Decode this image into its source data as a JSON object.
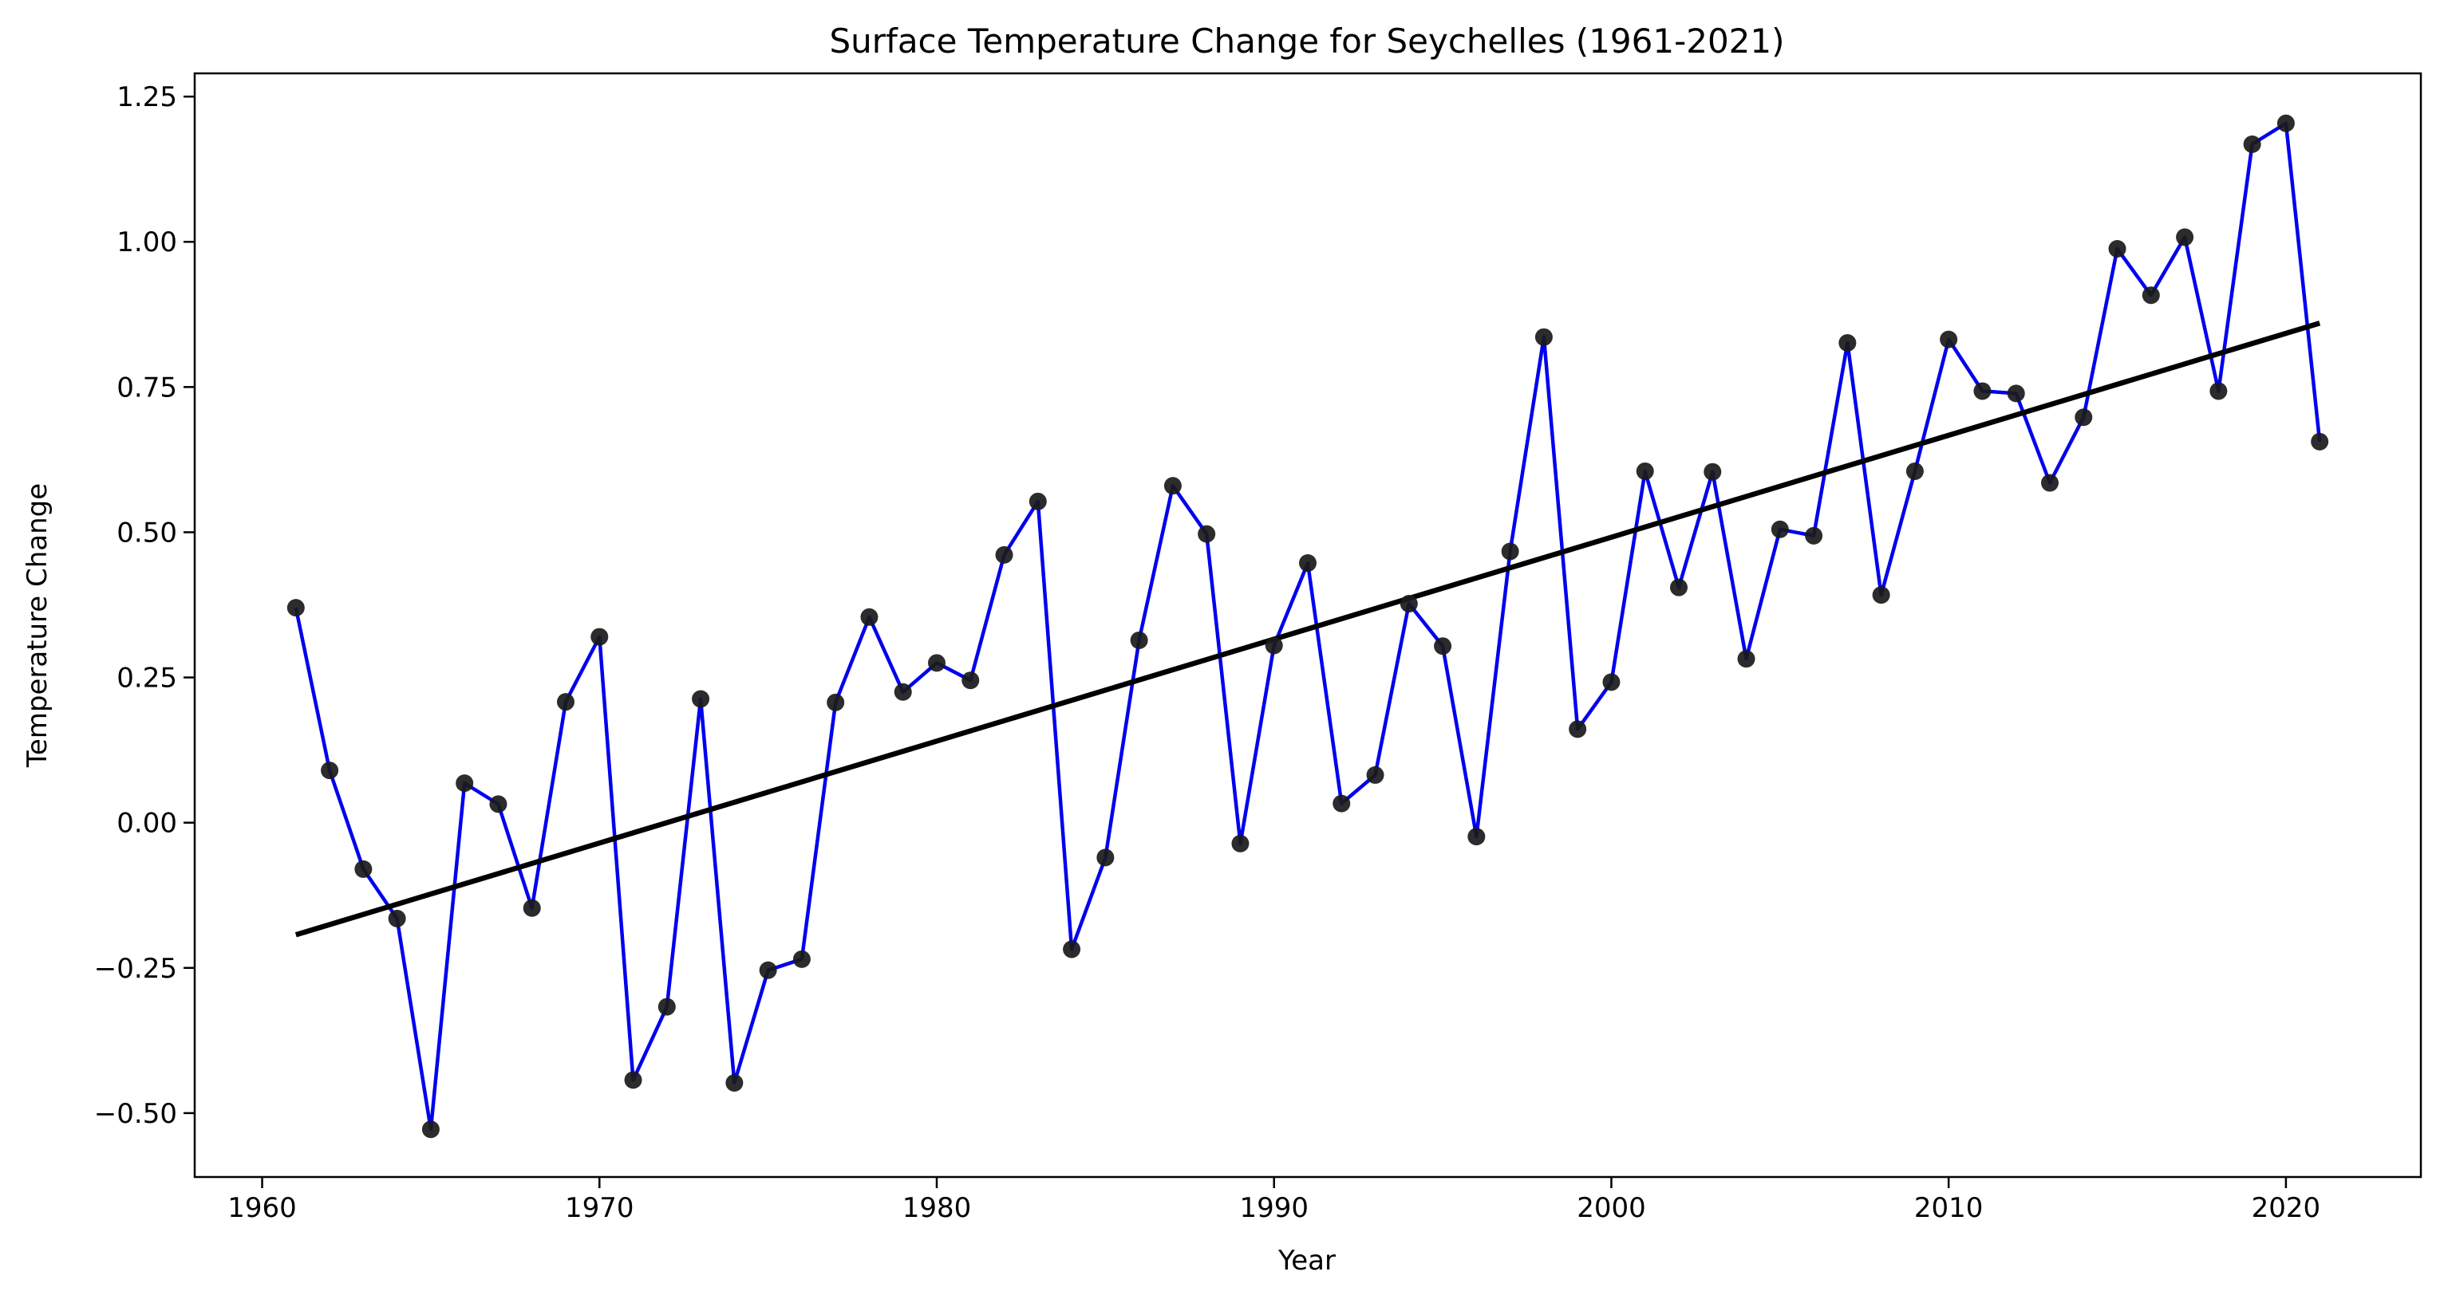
{
  "chart_data": {
    "type": "line",
    "title": "Surface Temperature Change for Seychelles (1961-2021)",
    "xlabel": "Year",
    "ylabel": "Temperature Change",
    "xlim": [
      1958.0,
      2024.0
    ],
    "ylim": [
      -0.61,
      1.29
    ],
    "xticks": [
      1960,
      1970,
      1980,
      1990,
      2000,
      2010,
      2020
    ],
    "xtick_labels": [
      "1960",
      "1970",
      "1980",
      "1990",
      "2000",
      "2010",
      "2020"
    ],
    "yticks": [
      -0.5,
      -0.25,
      0.0,
      0.25,
      0.5,
      0.75,
      1.0,
      1.25
    ],
    "ytick_labels": [
      "−0.50",
      "−0.25",
      "0.00",
      "0.25",
      "0.50",
      "0.75",
      "1.00",
      "1.25"
    ],
    "grid": false,
    "legend": "none",
    "series": [
      {
        "x": [
          1961,
          1962,
          1963,
          1964,
          1965,
          1966,
          1967,
          1968,
          1969,
          1970,
          1971,
          1972,
          1973,
          1974,
          1975,
          1976,
          1977,
          1978,
          1979,
          1980,
          1981,
          1982,
          1983,
          1984,
          1985,
          1986,
          1987,
          1988,
          1989,
          1990,
          1991,
          1992,
          1993,
          1994,
          1995,
          1996,
          1997,
          1998,
          1999,
          2000,
          2001,
          2002,
          2003,
          2004,
          2005,
          2006,
          2007,
          2008,
          2009,
          2010,
          2011,
          2012,
          2013,
          2014,
          2015,
          2016,
          2017,
          2018,
          2019,
          2020,
          2021
        ],
        "values": [
          0.37,
          0.09,
          -0.08,
          -0.165,
          -0.528,
          0.068,
          0.032,
          -0.147,
          0.208,
          0.32,
          -0.443,
          -0.317,
          0.213,
          -0.448,
          -0.254,
          -0.235,
          0.207,
          0.354,
          0.225,
          0.275,
          0.245,
          0.461,
          0.553,
          -0.218,
          -0.06,
          0.314,
          0.58,
          0.497,
          -0.036,
          0.305,
          0.447,
          0.033,
          0.082,
          0.377,
          0.304,
          -0.024,
          0.467,
          0.836,
          0.161,
          0.242,
          0.605,
          0.405,
          0.604,
          0.282,
          0.505,
          0.494,
          0.826,
          0.392,
          0.605,
          0.832,
          0.743,
          0.739,
          0.585,
          0.698,
          0.988,
          0.908,
          1.008,
          0.743,
          1.168,
          1.204,
          0.656
        ],
        "line_color": "#0000ee",
        "marker_color": "#1a1a1a"
      }
    ],
    "trend_line": {
      "x": [
        1961,
        2021
      ],
      "values": [
        -0.193,
        0.86
      ],
      "color": "#000000"
    }
  }
}
